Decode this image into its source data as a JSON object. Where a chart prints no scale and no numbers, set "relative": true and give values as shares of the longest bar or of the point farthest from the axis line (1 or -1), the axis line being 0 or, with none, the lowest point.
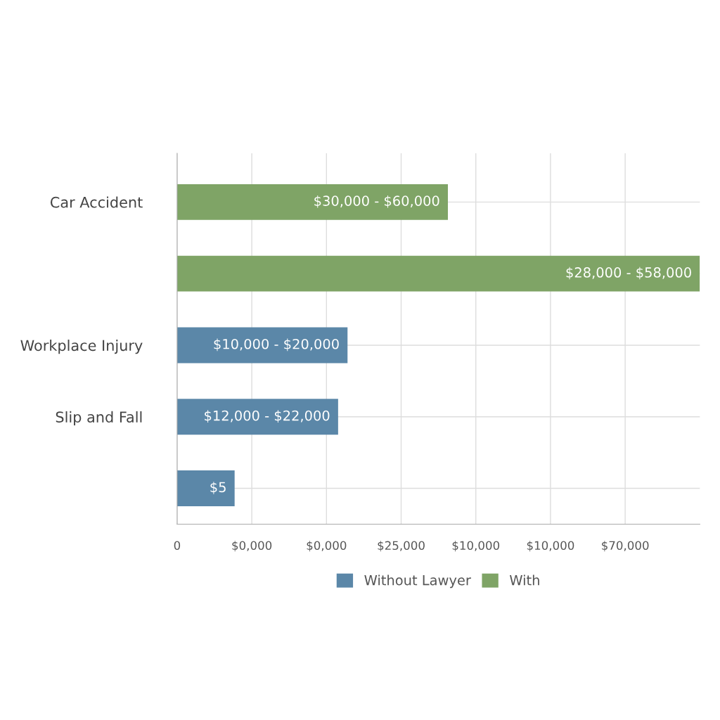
{
  "chart_data": {
    "type": "bar",
    "orientation": "horizontal",
    "relative": true,
    "categories": [
      "Car Accident",
      null,
      "Workplace Injury",
      "Slip and Fall",
      null
    ],
    "series": [
      {
        "name": "Without Lawyer",
        "color": "#5b87a8",
        "values": [
          null,
          null,
          0.326,
          0.308,
          0.11
        ]
      },
      {
        "name": "With",
        "color": "#7fa466",
        "values": [
          0.518,
          1,
          null,
          null,
          null
        ]
      }
    ],
    "annotations": [
      {
        "text": "$30,000 - $60,000",
        "x": 0.518
      },
      {
        "text": "$28,000 - $58,000",
        "x": 1
      },
      {
        "text": "$10,000 - $20,000",
        "x": 0.326
      },
      {
        "text": "$12,000 - $22,000",
        "x": 0.308
      },
      {
        "text": "$5",
        "x": 0.11
      },
      "0",
      "$0,000",
      "$0,000",
      "$25,000",
      "$10,000",
      "$10,000",
      "$70,000"
    ],
    "grid": true,
    "legend": "bottom"
  }
}
